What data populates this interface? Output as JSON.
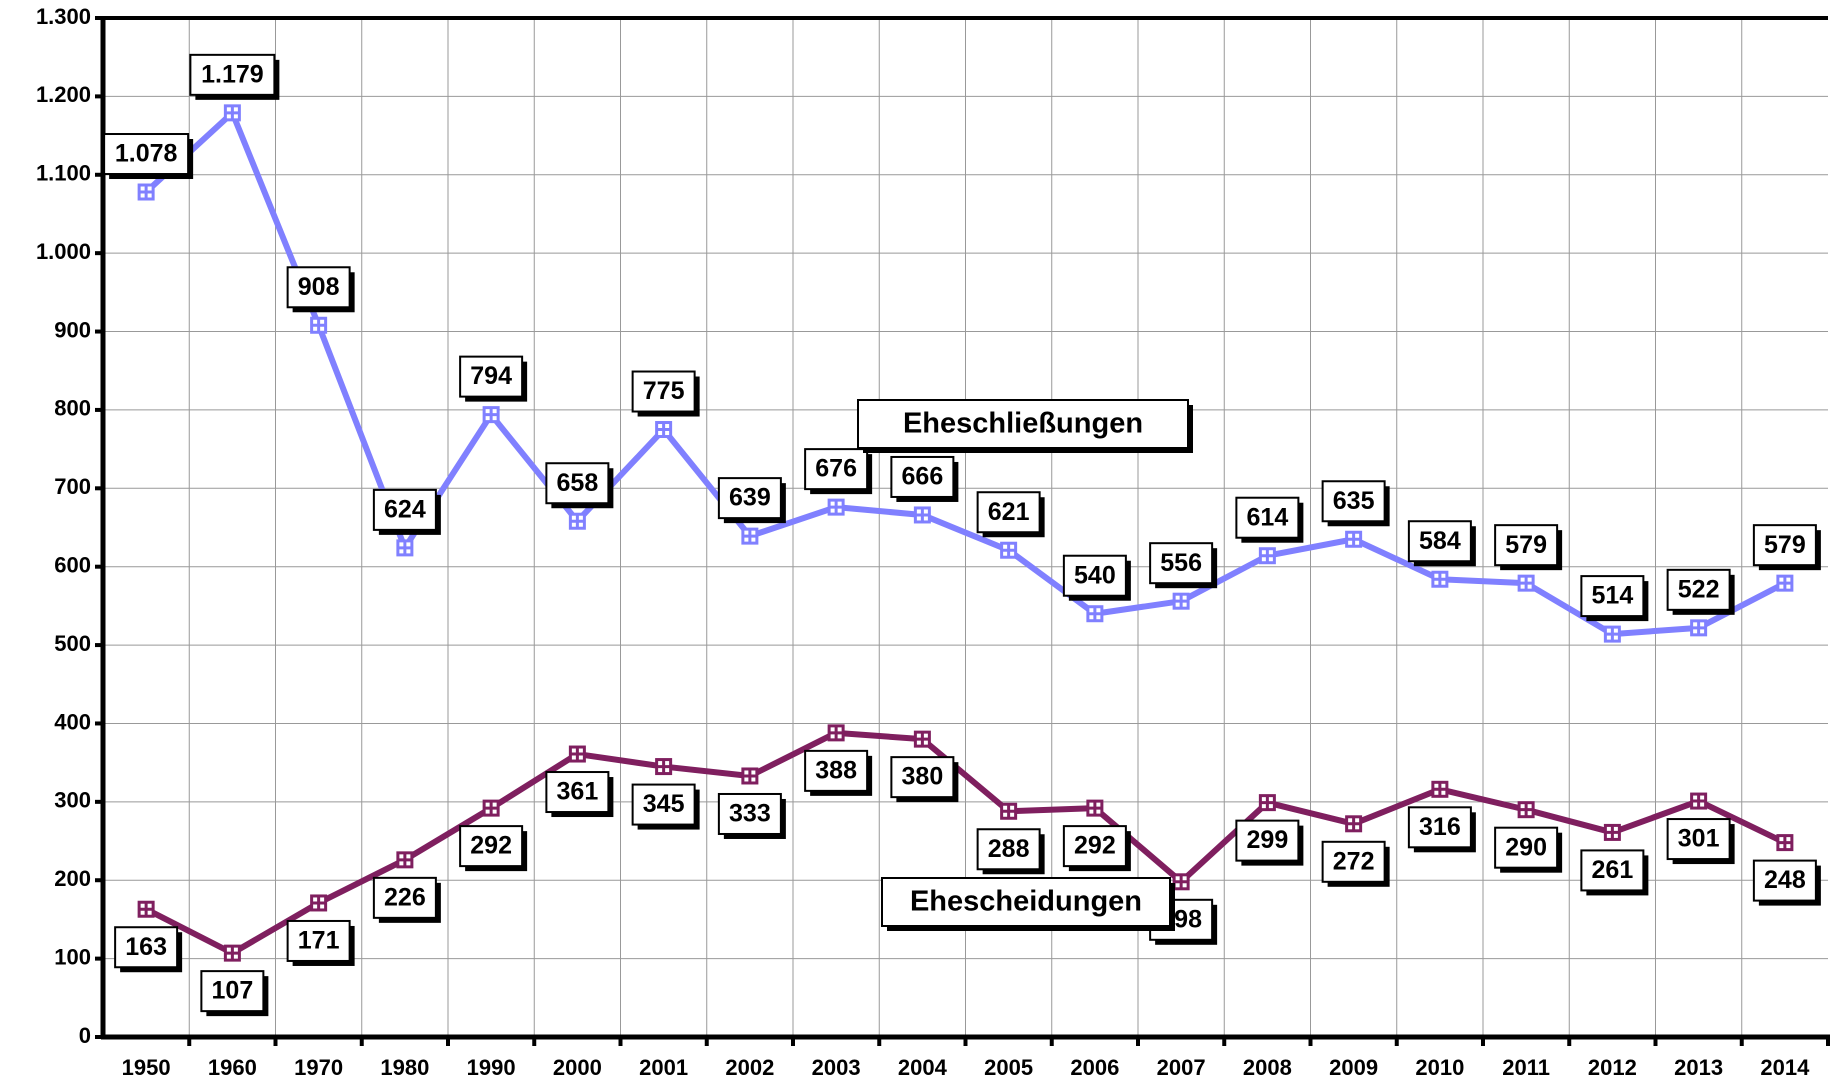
{
  "chart_data": {
    "type": "line",
    "categories": [
      "1950",
      "1960",
      "1970",
      "1980",
      "1990",
      "2000",
      "2001",
      "2002",
      "2003",
      "2004",
      "2005",
      "2006",
      "2007",
      "2008",
      "2009",
      "2010",
      "2011",
      "2012",
      "2013",
      "2014"
    ],
    "series": [
      {
        "name": "Eheschließungen",
        "color": "#8080ff",
        "values": [
          1078,
          1179,
          908,
          624,
          794,
          658,
          775,
          639,
          676,
          666,
          621,
          540,
          556,
          614,
          635,
          584,
          579,
          514,
          522,
          579
        ],
        "value_labels": [
          "1.078",
          "1.179",
          "908",
          "624",
          "794",
          "658",
          "775",
          "639",
          "676",
          "666",
          "621",
          "540",
          "556",
          "614",
          "635",
          "584",
          "579",
          "514",
          "522",
          "579"
        ]
      },
      {
        "name": "Ehescheidungen",
        "color": "#7f1f5f",
        "values": [
          163,
          107,
          171,
          226,
          292,
          361,
          345,
          333,
          388,
          380,
          288,
          292,
          198,
          299,
          272,
          316,
          290,
          261,
          301,
          248
        ],
        "value_labels": [
          "163",
          "107",
          "171",
          "226",
          "292",
          "361",
          "345",
          "333",
          "388",
          "380",
          "288",
          "292",
          "198",
          "299",
          "272",
          "316",
          "290",
          "261",
          "301",
          "248"
        ]
      }
    ],
    "ylim": [
      0,
      1300
    ],
    "yticks": [
      0,
      100,
      200,
      300,
      400,
      500,
      600,
      700,
      800,
      900,
      {
        "value": 1000,
        "label": "1.000"
      },
      {
        "value": 1100,
        "label": "1.100"
      },
      {
        "value": 1200,
        "label": "1.200"
      },
      {
        "value": 1300,
        "label": "1.300"
      }
    ],
    "grid": true
  }
}
